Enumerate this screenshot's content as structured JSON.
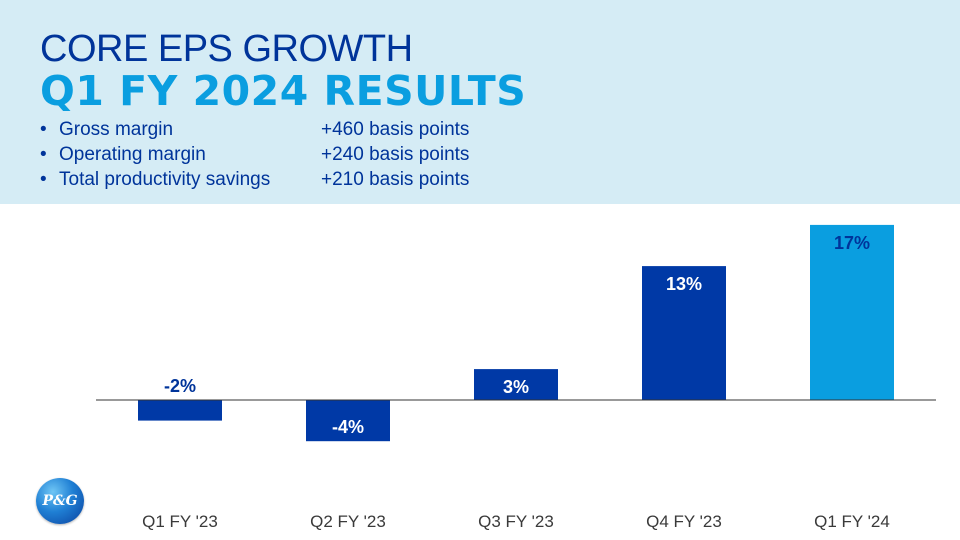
{
  "header": {
    "title_line1": "CORE EPS GROWTH",
    "title_line2": "Q1 FY 2024 RESULTS",
    "bullet_glyph": "•",
    "bullets": [
      {
        "label": "Gross margin",
        "value": "+460 basis points"
      },
      {
        "label": "Operating margin",
        "value": "+240 basis points"
      },
      {
        "label": "Total productivity savings",
        "value": "+210 basis points"
      }
    ]
  },
  "logo": {
    "text": "P&G",
    "icon": "pg-logo-icon"
  },
  "colors": {
    "header_bg": "#d5ecf5",
    "title_dark": "#00349a",
    "title_light": "#0a9ee0",
    "bar_dark": "#0039a6",
    "bar_highlight": "#0a9ee0",
    "axis": "#333333"
  },
  "chart_data": {
    "type": "bar",
    "categories": [
      "Q1 FY '23",
      "Q2 FY '23",
      "Q3 FY '23",
      "Q4 FY '23",
      "Q1 FY '24"
    ],
    "values": [
      -2,
      -4,
      3,
      13,
      17
    ],
    "labels": [
      "-2%",
      "-4%",
      "3%",
      "13%",
      "17%"
    ],
    "highlight_index": 4,
    "ylim": [
      -6,
      17
    ],
    "grid": false,
    "legend": "none"
  }
}
